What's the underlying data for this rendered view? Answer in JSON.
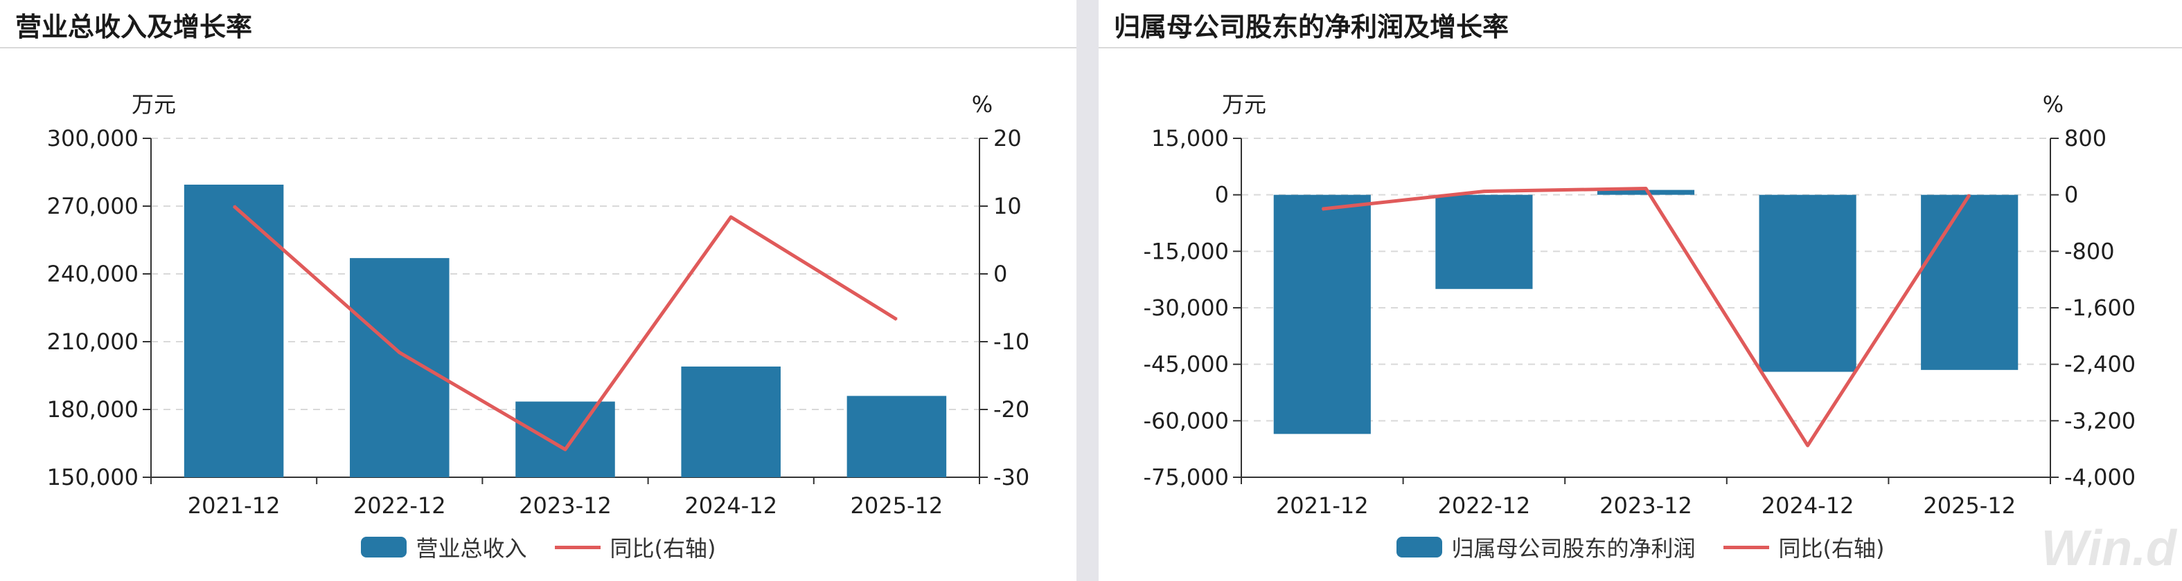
{
  "colors": {
    "bar": "#2578a6",
    "line": "#e05a5a",
    "grid": "#d9d9d9",
    "axis": "#333333",
    "text": "#1f1f1f"
  },
  "watermark": "Win.d",
  "charts": [
    {
      "title": "营业总收入及增长率",
      "unit_left": "万元",
      "unit_right": "%",
      "legend_bar": "营业总收入",
      "legend_line": "同比(右轴)"
    },
    {
      "title": "归属母公司股东的净利润及增长率",
      "unit_left": "万元",
      "unit_right": "%",
      "legend_bar": "归属母公司股东的净利润",
      "legend_line": "同比(右轴)"
    }
  ],
  "chart_data": [
    {
      "type": "bar",
      "title": "营业总收入及增长率",
      "categories": [
        "2021-12",
        "2022-12",
        "2023-12",
        "2024-12",
        "2025-12"
      ],
      "series": [
        {
          "name": "营业总收入",
          "type": "bar",
          "axis": "left",
          "values": [
            279500,
            247000,
            183500,
            199000,
            186000
          ]
        },
        {
          "name": "同比(右轴)",
          "type": "line",
          "axis": "right",
          "values": [
            10,
            -11.6,
            -25.9,
            8.4,
            -6.7
          ]
        }
      ],
      "ylim_left": [
        150000,
        300000
      ],
      "yticks_left": [
        150000,
        180000,
        210000,
        240000,
        270000,
        300000
      ],
      "ytick_labels_left": [
        "150,000",
        "180,000",
        "210,000",
        "240,000",
        "270,000",
        "300,000"
      ],
      "ylim_right": [
        -30,
        20
      ],
      "yticks_right": [
        -30,
        -20,
        -10,
        0,
        10,
        20
      ],
      "ytick_labels_right": [
        "-30",
        "-20",
        "-10",
        "0",
        "10",
        "20"
      ],
      "ylabel_left": "万元",
      "ylabel_right": "%",
      "grid": true,
      "legend": "bottom"
    },
    {
      "type": "bar",
      "title": "归属母公司股东的净利润及增长率",
      "categories": [
        "2021-12",
        "2022-12",
        "2023-12",
        "2024-12",
        "2025-12"
      ],
      "series": [
        {
          "name": "归属母公司股东的净利润",
          "type": "bar",
          "axis": "left",
          "values": [
            -63500,
            -25000,
            1300,
            -47000,
            -46500
          ]
        },
        {
          "name": "同比(右轴)",
          "type": "line",
          "axis": "right",
          "values": [
            -200,
            50,
            90,
            -3550,
            0
          ]
        }
      ],
      "ylim_left": [
        -75000,
        15000
      ],
      "yticks_left": [
        -75000,
        -60000,
        -45000,
        -30000,
        -15000,
        0,
        15000
      ],
      "ytick_labels_left": [
        "-75,000",
        "-60,000",
        "-45,000",
        "-30,000",
        "-15,000",
        "0",
        "15,000"
      ],
      "ylim_right": [
        -4000,
        800
      ],
      "yticks_right": [
        -4000,
        -3200,
        -2400,
        -1600,
        -800,
        0,
        800
      ],
      "ytick_labels_right": [
        "-4,000",
        "-3,200",
        "-2,400",
        "-1,600",
        "-800",
        "0",
        "800"
      ],
      "ylabel_left": "万元",
      "ylabel_right": "%",
      "grid": true,
      "legend": "bottom"
    }
  ]
}
